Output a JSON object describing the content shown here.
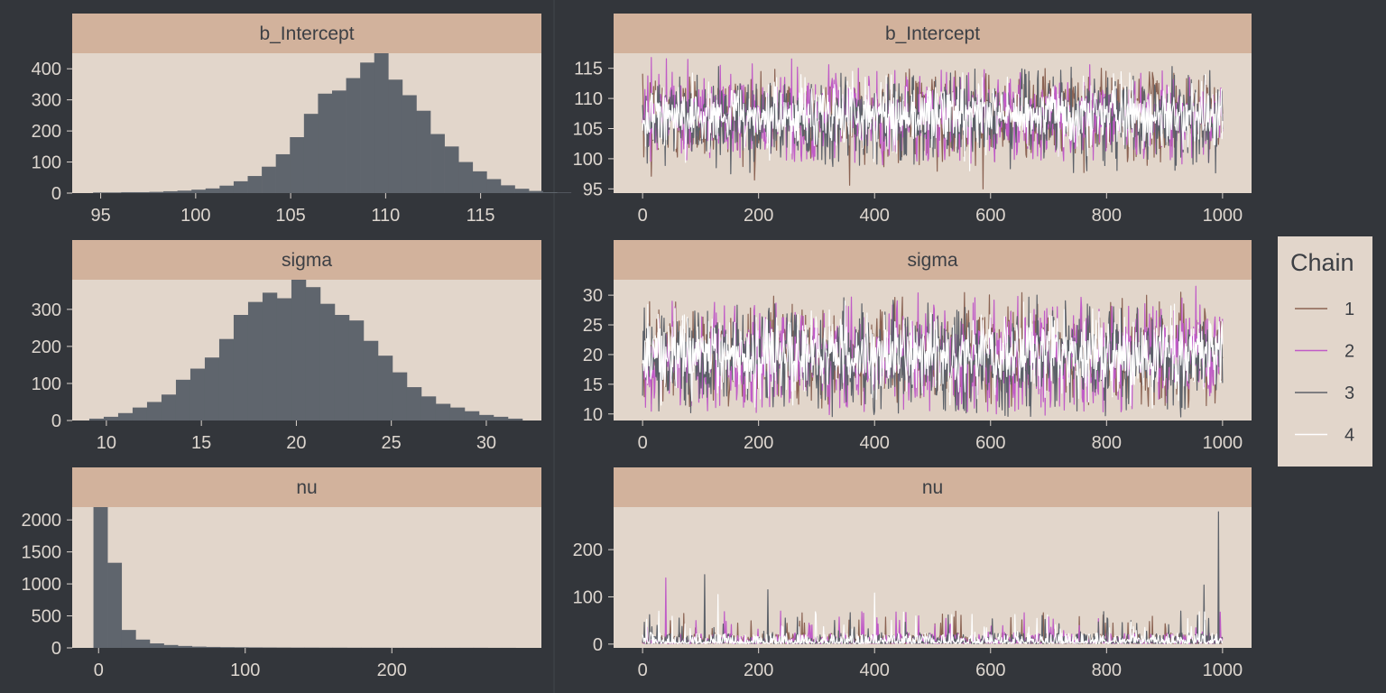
{
  "colors": {
    "background": "#33363b",
    "panel": "#e2d6cb",
    "strip": "#d2b29c",
    "histogram_fill": "#5f656d",
    "axis_text": "#ddd6cf",
    "strip_text": "#3c3f44",
    "legend_box": "#e2d6cb"
  },
  "legend": {
    "title": "Chain",
    "entries": [
      {
        "label": "1",
        "color": "#8b6353"
      },
      {
        "label": "2",
        "color": "#c05bc7"
      },
      {
        "label": "3",
        "color": "#5c6169"
      },
      {
        "label": "4",
        "color": "#ffffff"
      }
    ]
  },
  "chart_data": [
    {
      "type": "bar",
      "subtype": "histogram",
      "title": "b_Intercept",
      "bin_start": 94.6,
      "bin_width": 0.74,
      "counts": [
        2,
        2,
        3,
        3,
        4,
        6,
        8,
        11,
        15,
        24,
        38,
        55,
        85,
        125,
        180,
        255,
        320,
        330,
        370,
        420,
        450,
        365,
        315,
        265,
        190,
        150,
        100,
        70,
        45,
        25,
        14,
        7,
        3,
        2
      ],
      "xlim": [
        93.5,
        118.2
      ],
      "ylim": [
        0,
        450
      ],
      "x_ticks": [
        95,
        100,
        105,
        110,
        115
      ],
      "y_ticks": [
        0,
        100,
        200,
        300,
        400
      ]
    },
    {
      "type": "line",
      "subtype": "trace",
      "title": "b_Intercept",
      "xlim": [
        -50,
        1050
      ],
      "ylim": [
        94.3,
        117.5
      ],
      "x_ticks": [
        0,
        200,
        400,
        600,
        800,
        1000
      ],
      "y_ticks": [
        95,
        100,
        105,
        110,
        115
      ],
      "chain_stats": [
        {
          "chain": "1",
          "mean": 107.2,
          "sd": 3.3,
          "min": 95.0,
          "max": 115.0
        },
        {
          "chain": "2",
          "mean": 107.0,
          "sd": 3.5,
          "min": 99.0,
          "max": 116.8
        },
        {
          "chain": "3",
          "mean": 106.8,
          "sd": 3.4,
          "min": 97.5,
          "max": 115.3
        },
        {
          "chain": "4",
          "mean": 107.3,
          "sd": 2.6,
          "min": 98.0,
          "max": 114.5
        }
      ]
    },
    {
      "type": "bar",
      "subtype": "histogram",
      "title": "sigma",
      "bin_start": 9.1,
      "bin_width": 0.76,
      "counts": [
        5,
        10,
        20,
        35,
        50,
        70,
        110,
        140,
        170,
        220,
        285,
        320,
        345,
        330,
        380,
        360,
        315,
        285,
        270,
        215,
        175,
        130,
        90,
        65,
        45,
        35,
        25,
        15,
        10,
        5
      ],
      "xlim": [
        8.2,
        32.9
      ],
      "ylim": [
        0,
        380
      ],
      "x_ticks": [
        10,
        15,
        20,
        25,
        30
      ],
      "y_ticks": [
        0,
        100,
        200,
        300
      ]
    },
    {
      "type": "line",
      "subtype": "trace",
      "title": "sigma",
      "xlim": [
        -50,
        1050
      ],
      "ylim": [
        8.9,
        32.6
      ],
      "x_ticks": [
        0,
        200,
        400,
        600,
        800,
        1000
      ],
      "y_ticks": [
        10,
        15,
        20,
        25,
        30
      ],
      "chain_stats": [
        {
          "chain": "1",
          "mean": 19.8,
          "sd": 3.8,
          "min": 11.0,
          "max": 30.5
        },
        {
          "chain": "2",
          "mean": 19.6,
          "sd": 4.2,
          "min": 9.8,
          "max": 31.5
        },
        {
          "chain": "3",
          "mean": 19.5,
          "sd": 3.9,
          "min": 9.5,
          "max": 30.0
        },
        {
          "chain": "4",
          "mean": 20.0,
          "sd": 3.2,
          "min": 11.0,
          "max": 29.0
        }
      ]
    },
    {
      "type": "bar",
      "subtype": "histogram",
      "title": "nu",
      "bin_start": -3.5,
      "bin_width": 9.6,
      "counts": [
        2200,
        1330,
        280,
        130,
        70,
        45,
        30,
        20,
        15,
        12,
        10,
        8,
        7,
        6,
        5,
        5,
        4,
        4,
        3,
        3,
        3,
        2,
        2,
        2,
        2,
        2,
        2,
        2,
        1,
        1
      ],
      "xlim": [
        -18,
        302
      ],
      "ylim": [
        0,
        2200
      ],
      "x_ticks": [
        0,
        100,
        200
      ],
      "y_ticks": [
        0,
        500,
        1000,
        1500,
        2000
      ]
    },
    {
      "type": "line",
      "subtype": "trace",
      "title": "nu",
      "xlim": [
        -50,
        1050
      ],
      "ylim": [
        -8,
        290
      ],
      "x_ticks": [
        0,
        200,
        400,
        600,
        800,
        1000
      ],
      "y_ticks": [
        0,
        100,
        200
      ],
      "chain_stats": [
        {
          "chain": "1",
          "median": 6,
          "max": 95
        },
        {
          "chain": "2",
          "median": 6,
          "max": 140
        },
        {
          "chain": "3",
          "median": 6,
          "max": 280
        },
        {
          "chain": "4",
          "median": 6,
          "max": 105
        }
      ],
      "spikes": [
        {
          "chain": "2",
          "x": 40,
          "y": 140
        },
        {
          "chain": "3",
          "x": 107,
          "y": 147
        },
        {
          "chain": "4",
          "x": 130,
          "y": 105
        },
        {
          "chain": "3",
          "x": 216,
          "y": 115
        },
        {
          "chain": "4",
          "x": 400,
          "y": 108
        },
        {
          "chain": "3",
          "x": 968,
          "y": 125
        },
        {
          "chain": "3",
          "x": 993,
          "y": 280
        }
      ]
    }
  ]
}
